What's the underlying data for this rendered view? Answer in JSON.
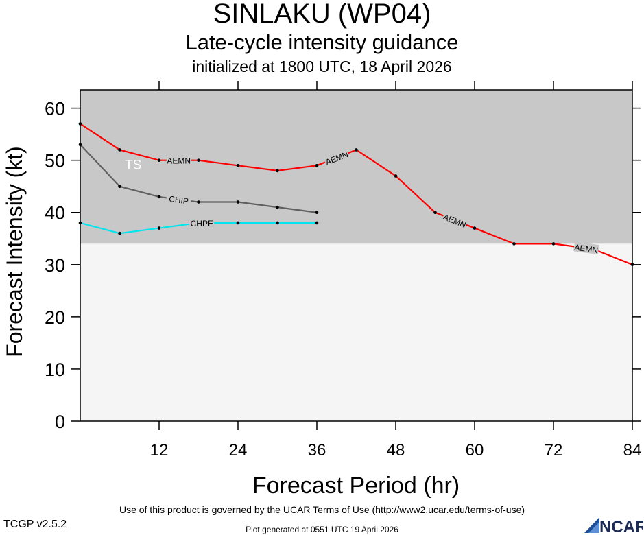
{
  "chart_data": {
    "type": "line",
    "title": "SINLAKU (WP04)",
    "subtitle": "Late-cycle intensity guidance",
    "init_text": "initialized at 1800 UTC, 18 April 2026",
    "xlabel": "Forecast Period (hr)",
    "ylabel": "Forecast Intensity (kt)",
    "xlim": [
      0,
      84
    ],
    "ylim": [
      0,
      60
    ],
    "x_ticks": [
      12,
      24,
      36,
      48,
      60,
      72,
      84
    ],
    "y_ticks": [
      0,
      10,
      20,
      30,
      40,
      50,
      60
    ],
    "grid": false,
    "category_bands": [
      {
        "label": "TS",
        "from": 34,
        "to": 64,
        "color": "#c8c8c8"
      },
      {
        "label": "",
        "from": 0,
        "to": 34,
        "color": "#f5f5f5"
      }
    ],
    "series": [
      {
        "name": "AEMN",
        "color": "#ff0000",
        "x": [
          0,
          6,
          12,
          18,
          24,
          30,
          36,
          42,
          48,
          54,
          60,
          66,
          72,
          78,
          84
        ],
        "y": [
          57,
          52,
          50,
          50,
          49,
          48,
          49,
          52,
          47,
          40,
          37,
          34,
          34,
          33,
          30
        ],
        "labels_at": [
          15,
          39,
          57,
          77
        ]
      },
      {
        "name": "CHIP",
        "color": "#606060",
        "x": [
          0,
          6,
          12,
          18,
          24,
          30,
          36
        ],
        "y": [
          53,
          45,
          43,
          42,
          42,
          41,
          40
        ],
        "labels_at": [
          15
        ]
      },
      {
        "name": "CHPE",
        "color": "#00e5ee",
        "x": [
          0,
          6,
          12,
          18,
          24,
          30,
          36
        ],
        "y": [
          38,
          36,
          37,
          38,
          38,
          38,
          38
        ],
        "labels_at": [
          18.5
        ]
      }
    ]
  },
  "footer": {
    "terms": "Use of this product is governed by the UCAR Terms of Use (http://www2.ucar.edu/terms-of-use)",
    "version": "TCGP v2.5.2",
    "generated": "Plot generated at 0551 UTC   19 April 2026",
    "logo_text": "NCAR"
  }
}
